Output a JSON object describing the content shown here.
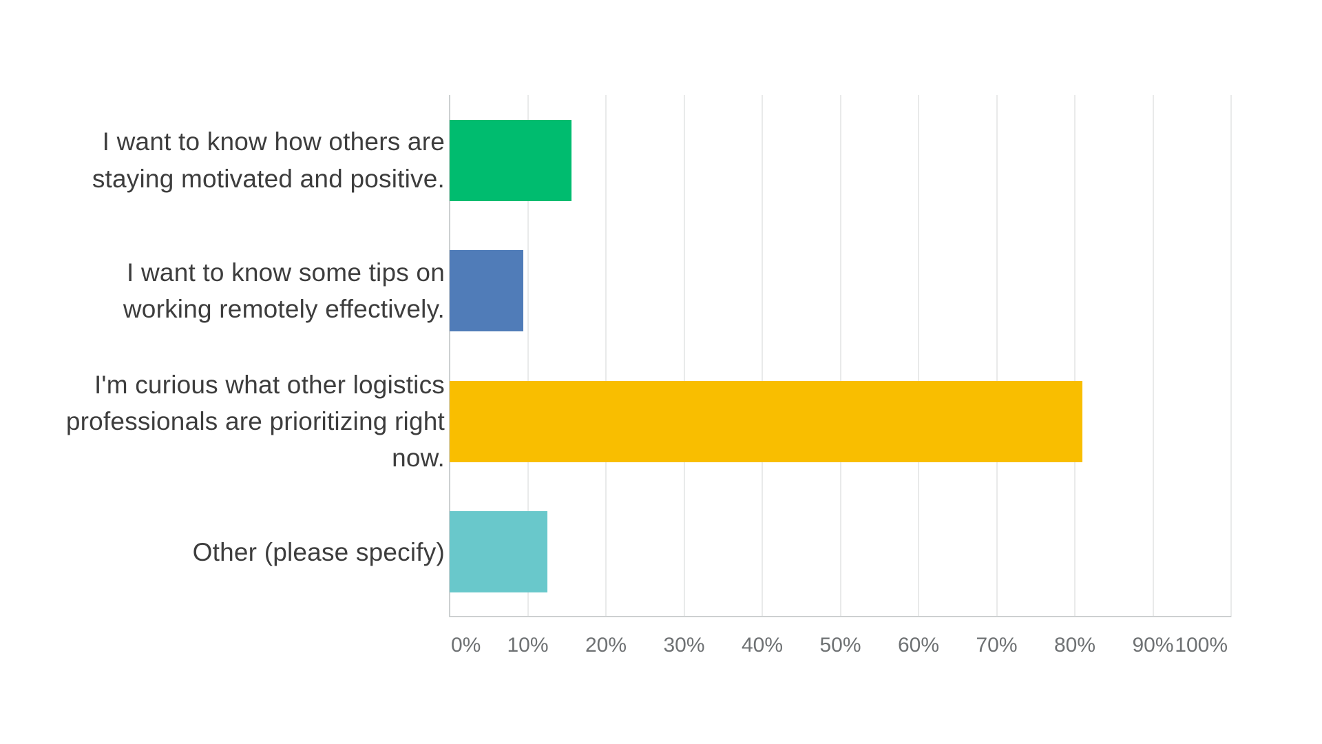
{
  "chart_data": {
    "type": "bar",
    "orientation": "horizontal",
    "title": "",
    "xlabel": "",
    "ylabel": "",
    "categories": [
      "I want to know how others are staying motivated and positive.",
      "I want to know some tips on working remotely effectively.",
      "I'm curious what other logistics professionals are prioritizing right now.",
      "Other (please specify)"
    ],
    "values": [
      15.6,
      9.4,
      81.0,
      12.5
    ],
    "value_unit": "%",
    "bar_colors": [
      "#00BC6F",
      "#507CB8",
      "#F9BE00",
      "#69C8CB"
    ],
    "xlim": [
      0,
      100
    ],
    "x_tick_labels": [
      "0%",
      "10%",
      "20%",
      "30%",
      "40%",
      "50%",
      "60%",
      "70%",
      "80%",
      "90%",
      "100%"
    ],
    "grid": true,
    "legend": false
  },
  "style": {
    "background": "#FFFFFF",
    "gridline_color": "#E9EAEA",
    "axis_line_color": "#CDD0D1",
    "category_label_color": "#3D3D3D",
    "tick_label_color": "#6E7173"
  }
}
